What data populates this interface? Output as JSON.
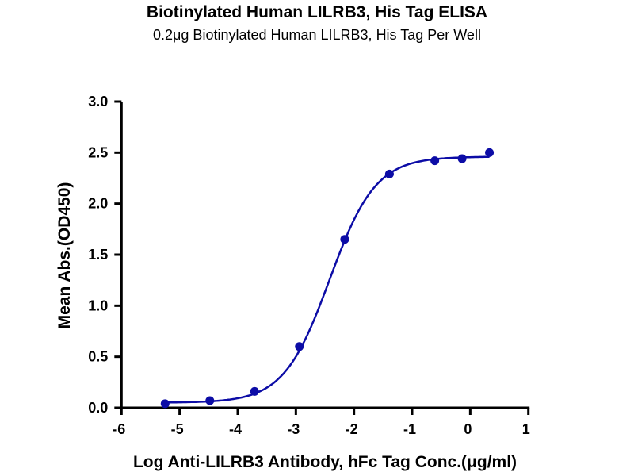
{
  "chart_data": {
    "type": "scatter",
    "title": "Biotinylated Human LILRB3, His Tag ELISA",
    "subtitle": "0.2μg Biotinylated Human LILRB3, His Tag Per Well",
    "xlabel": "Log Anti-LILRB3 Antibody, hFc Tag Conc.(μg/ml)",
    "ylabel": "Mean Abs.(OD450)",
    "xlim": [
      -6,
      1
    ],
    "ylim": [
      0,
      3.0
    ],
    "xticks": [
      "-6",
      "-5",
      "-4",
      "-3",
      "-2",
      "-1",
      "0",
      "1"
    ],
    "yticks": [
      "0.0",
      "0.5",
      "1.0",
      "1.5",
      "2.0",
      "2.5",
      "3.0"
    ],
    "grid": false,
    "fit_line": "sigmoidal dose-response",
    "series": [
      {
        "x": [
          -5.25,
          -4.48,
          -3.71,
          -2.94,
          -2.16,
          -1.39,
          -0.61,
          -0.14,
          0.33
        ],
        "y": [
          0.04,
          0.07,
          0.16,
          0.6,
          1.65,
          2.29,
          2.42,
          2.44,
          2.5
        ]
      }
    ],
    "colors": {
      "series": "#0c0ca6",
      "axis": "#000000"
    }
  }
}
